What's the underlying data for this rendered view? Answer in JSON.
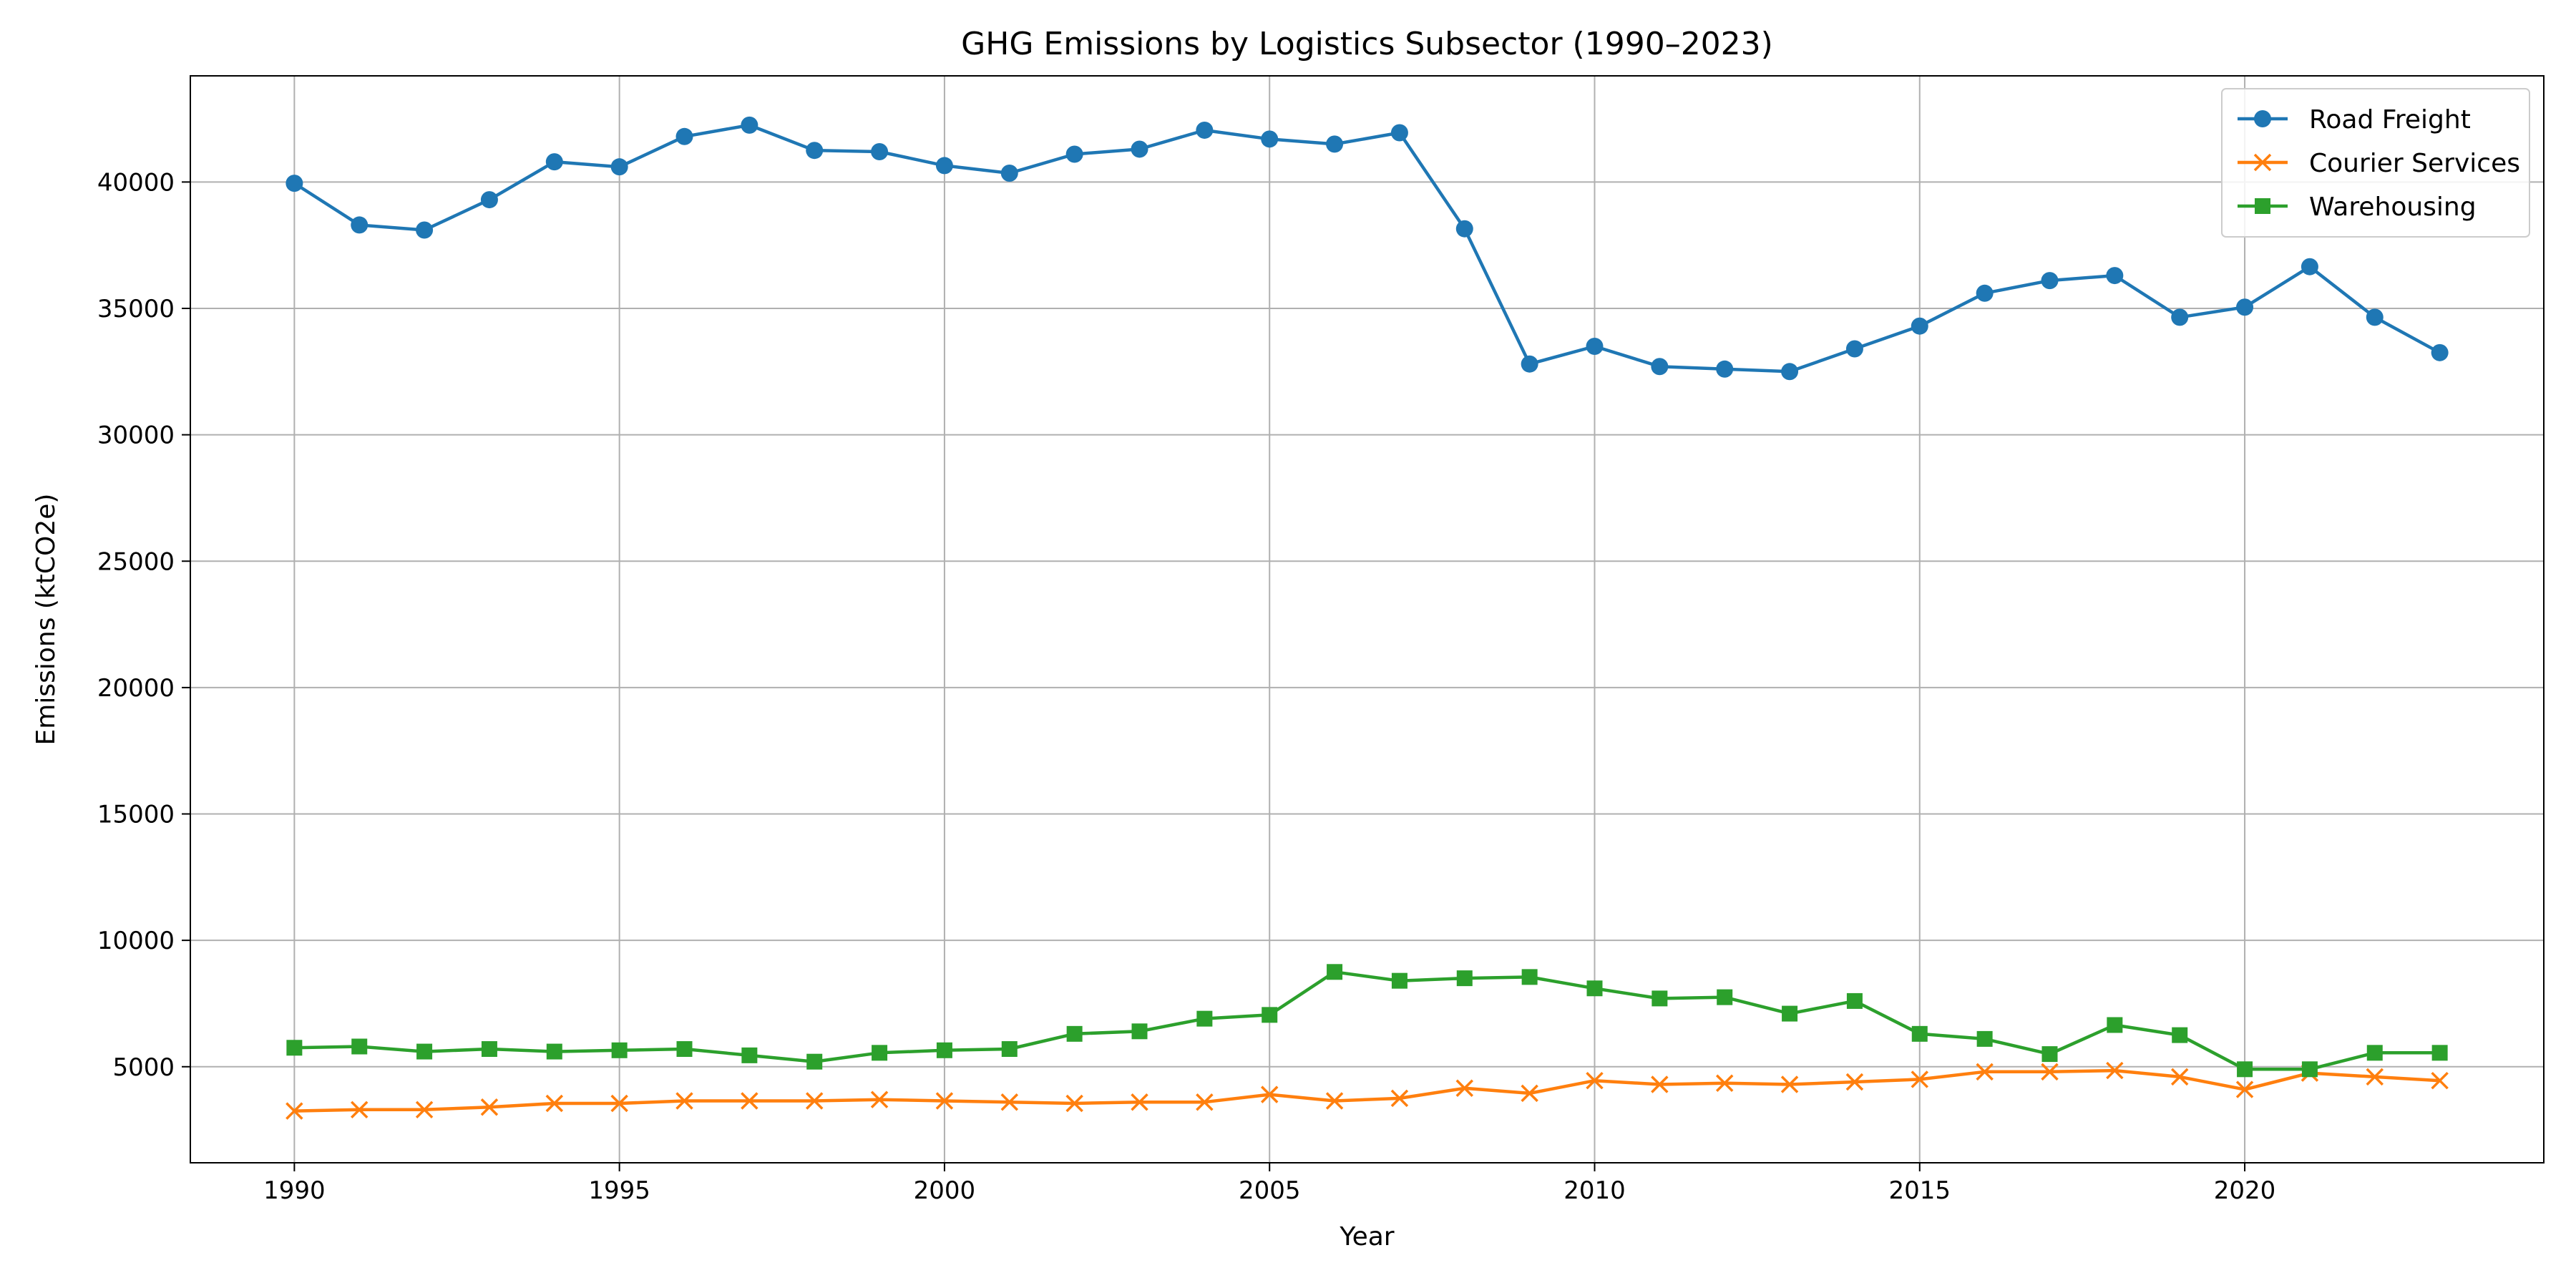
{
  "chart_data": {
    "type": "line",
    "title": "GHG Emissions by Logistics Subsector (1990–2023)",
    "xlabel": "Year",
    "ylabel": "Emissions (ktCO2e)",
    "xlim": [
      1988.4,
      2024.6
    ],
    "ylim": [
      1200,
      44200
    ],
    "xticks": [
      1990,
      1995,
      2000,
      2005,
      2010,
      2015,
      2020
    ],
    "yticks": [
      5000,
      10000,
      15000,
      20000,
      25000,
      30000,
      35000,
      40000
    ],
    "grid": true,
    "legend_position": "top-right",
    "x": [
      1990,
      1991,
      1992,
      1993,
      1994,
      1995,
      1996,
      1997,
      1998,
      1999,
      2000,
      2001,
      2002,
      2003,
      2004,
      2005,
      2006,
      2007,
      2008,
      2009,
      2010,
      2011,
      2012,
      2013,
      2014,
      2015,
      2016,
      2017,
      2018,
      2019,
      2020,
      2021,
      2022,
      2023
    ],
    "series": [
      {
        "name": "Road Freight",
        "color": "#1f77b4",
        "marker": "circle",
        "values": [
          39950,
          38300,
          38100,
          39300,
          40800,
          40600,
          41800,
          42250,
          41250,
          41200,
          40650,
          40350,
          41100,
          41300,
          42050,
          41700,
          41500,
          41950,
          38150,
          32800,
          33500,
          32700,
          32600,
          32500,
          33400,
          34300,
          35600,
          36100,
          36300,
          34650,
          35050,
          36650,
          34650,
          33250
        ]
      },
      {
        "name": "Courier Services",
        "color": "#ff7f0e",
        "marker": "x",
        "values": [
          3250,
          3300,
          3300,
          3400,
          3550,
          3550,
          3650,
          3650,
          3650,
          3700,
          3650,
          3600,
          3550,
          3600,
          3600,
          3900,
          3650,
          3750,
          4150,
          3950,
          4450,
          4300,
          4350,
          4300,
          4400,
          4500,
          4800,
          4800,
          4850,
          4600,
          4100,
          4750,
          4600,
          4450
        ]
      },
      {
        "name": "Warehousing",
        "color": "#2ca02c",
        "marker": "square",
        "values": [
          5750,
          5800,
          5600,
          5700,
          5600,
          5650,
          5700,
          5450,
          5200,
          5550,
          5650,
          5700,
          6300,
          6400,
          6900,
          7050,
          8750,
          8400,
          8500,
          8550,
          8100,
          7700,
          7750,
          7100,
          7600,
          6300,
          6100,
          5500,
          6650,
          6250,
          4900,
          4900,
          5550,
          5550
        ]
      }
    ]
  }
}
